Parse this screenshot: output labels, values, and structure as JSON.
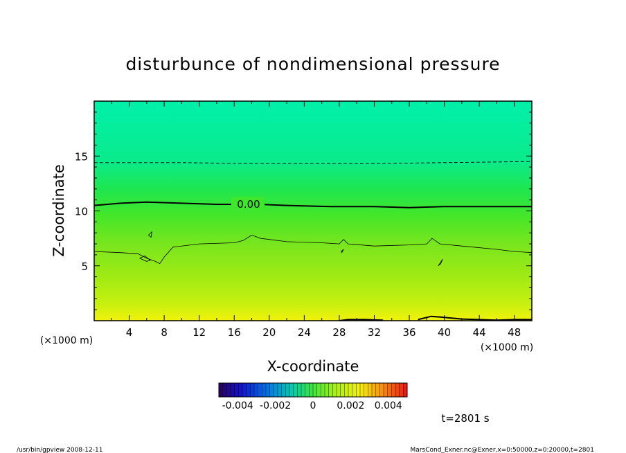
{
  "chart_data": {
    "type": "heatmap",
    "title": "disturbunce of nondimensional pressure",
    "xlabel": "X-coordinate",
    "ylabel": "Z-coordinate",
    "x_unit_left": "(×1000 m)",
    "x_unit_right": "(×1000 m)",
    "xlim": [
      0,
      50
    ],
    "ylim": [
      0,
      20
    ],
    "x_ticks": [
      4,
      8,
      12,
      16,
      20,
      24,
      28,
      32,
      36,
      40,
      44,
      48
    ],
    "y_ticks": [
      5,
      10,
      15
    ],
    "zero_contour_label": "0.00",
    "colorbar": {
      "min": -0.005,
      "max": 0.005,
      "tick_labels": [
        "-0.004",
        "-0.002",
        "0",
        "0.002",
        "0.004"
      ],
      "tick_values": [
        -0.004,
        -0.002,
        0,
        0.002,
        0.004
      ]
    },
    "field_profile": [
      {
        "z": 0,
        "color": "#f2f20a"
      },
      {
        "z": 1.5,
        "color": "#c8f00f"
      },
      {
        "z": 4,
        "color": "#a0ea14"
      },
      {
        "z": 7,
        "color": "#78e61e"
      },
      {
        "z": 9.5,
        "color": "#46e628"
      },
      {
        "z": 12,
        "color": "#1ee650"
      },
      {
        "z": 14.5,
        "color": "#0aeb8c"
      },
      {
        "z": 20,
        "color": "#00f0aa"
      }
    ],
    "contours": [
      {
        "style": "dashed",
        "points": [
          [
            0,
            14.4
          ],
          [
            10,
            14.4
          ],
          [
            20,
            14.3
          ],
          [
            30,
            14.3
          ],
          [
            40,
            14.4
          ],
          [
            50,
            14.5
          ]
        ]
      },
      {
        "style": "thick",
        "points": [
          [
            0,
            10.5
          ],
          [
            3,
            10.7
          ],
          [
            6,
            10.8
          ],
          [
            10,
            10.7
          ],
          [
            14,
            10.6
          ],
          [
            16,
            10.6
          ]
        ]
      },
      {
        "style": "thick",
        "points": [
          [
            19,
            10.6
          ],
          [
            22,
            10.5
          ],
          [
            27,
            10.4
          ],
          [
            32,
            10.4
          ],
          [
            36,
            10.3
          ],
          [
            40,
            10.4
          ],
          [
            45,
            10.4
          ],
          [
            50,
            10.4
          ]
        ]
      },
      {
        "style": "thin",
        "points": [
          [
            0,
            6.3
          ],
          [
            3,
            6.2
          ],
          [
            5,
            6.1
          ],
          [
            6,
            5.7
          ],
          [
            7,
            5.4
          ],
          [
            7.5,
            5.2
          ],
          [
            8,
            5.8
          ],
          [
            9,
            6.7
          ],
          [
            12,
            7.0
          ],
          [
            16,
            7.1
          ],
          [
            17,
            7.3
          ],
          [
            18,
            7.8
          ],
          [
            19,
            7.5
          ],
          [
            22,
            7.2
          ],
          [
            26,
            7.1
          ],
          [
            28,
            7.0
          ],
          [
            28.5,
            7.4
          ],
          [
            29,
            7.0
          ],
          [
            32,
            6.8
          ],
          [
            36,
            6.9
          ],
          [
            38,
            7.0
          ],
          [
            38.6,
            7.5
          ],
          [
            39.5,
            7.0
          ],
          [
            42,
            6.8
          ],
          [
            46,
            6.5
          ],
          [
            48,
            6.3
          ],
          [
            50,
            6.2
          ]
        ]
      },
      {
        "style": "thin",
        "points": [
          [
            5.2,
            5.7
          ],
          [
            5.8,
            5.9
          ],
          [
            6.4,
            5.5
          ],
          [
            6.0,
            5.4
          ],
          [
            5.2,
            5.7
          ]
        ]
      },
      {
        "style": "thin",
        "points": [
          [
            39.3,
            5.0
          ],
          [
            39.8,
            5.6
          ],
          [
            39.6,
            5.2
          ],
          [
            39.3,
            5.0
          ]
        ]
      },
      {
        "style": "thin",
        "points": [
          [
            28.2,
            6.3
          ],
          [
            28.5,
            6.5
          ],
          [
            28.3,
            6.2
          ],
          [
            28.2,
            6.3
          ]
        ]
      },
      {
        "style": "thin",
        "points": [
          [
            6.2,
            7.8
          ],
          [
            6.6,
            8.1
          ],
          [
            6.5,
            7.6
          ],
          [
            6.2,
            7.8
          ]
        ]
      },
      {
        "style": "thick",
        "points": [
          [
            28,
            0.0
          ],
          [
            29,
            0.1
          ],
          [
            31,
            0.1
          ],
          [
            33,
            0.05
          ]
        ]
      },
      {
        "style": "thick",
        "points": [
          [
            37,
            0.1
          ],
          [
            38.5,
            0.4
          ],
          [
            40,
            0.3
          ],
          [
            42,
            0.15
          ],
          [
            44,
            0.1
          ],
          [
            46,
            0.05
          ],
          [
            48,
            0.1
          ],
          [
            50,
            0.1
          ]
        ]
      }
    ]
  },
  "annotations": {
    "time": "t=2801 s",
    "footer_left": "/usr/bin/gpview   2008-12-11",
    "footer_right": "MarsCond_Exner.nc@Exner,x=0:50000,z=0:20000,t=2801"
  }
}
